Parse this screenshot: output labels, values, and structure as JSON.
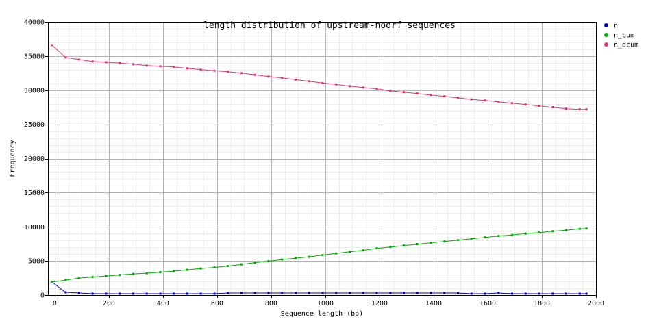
{
  "chart_data": {
    "type": "line",
    "title": "length distribution of upstream-noorf sequences",
    "xlabel": "Sequence length (bp)",
    "ylabel": "Frequency",
    "xlim": [
      -25,
      2000
    ],
    "ylim": [
      0,
      40000
    ],
    "xticks": [
      0,
      200,
      400,
      600,
      800,
      1000,
      1200,
      1400,
      1600,
      1800,
      2000
    ],
    "yticks": [
      0,
      5000,
      10000,
      15000,
      20000,
      25000,
      30000,
      35000,
      40000
    ],
    "grid": true,
    "legend": "top-right",
    "x": [
      -10,
      40,
      90,
      140,
      190,
      240,
      290,
      340,
      390,
      440,
      490,
      540,
      590,
      640,
      690,
      740,
      790,
      840,
      890,
      940,
      990,
      1040,
      1090,
      1140,
      1190,
      1240,
      1290,
      1340,
      1390,
      1440,
      1490,
      1540,
      1590,
      1640,
      1690,
      1740,
      1790,
      1840,
      1890,
      1940,
      1965
    ],
    "series": [
      {
        "name": "n",
        "color": "#0000cc",
        "values": [
          1900,
          400,
          300,
          200,
          200,
          200,
          200,
          200,
          200,
          200,
          200,
          200,
          200,
          300,
          300,
          300,
          300,
          300,
          300,
          300,
          300,
          300,
          300,
          300,
          300,
          300,
          300,
          300,
          300,
          300,
          300,
          200,
          200,
          300,
          200,
          200,
          200,
          200,
          200,
          200,
          200
        ]
      },
      {
        "name": "n_cum",
        "color": "#00aa00",
        "values": [
          1900,
          2200,
          2500,
          2650,
          2800,
          2950,
          3100,
          3200,
          3350,
          3500,
          3700,
          3900,
          4050,
          4250,
          4500,
          4750,
          4950,
          5200,
          5400,
          5600,
          5850,
          6100,
          6350,
          6550,
          6850,
          7050,
          7250,
          7450,
          7650,
          7850,
          8050,
          8250,
          8450,
          8650,
          8800,
          9000,
          9150,
          9350,
          9500,
          9700,
          9750
        ]
      },
      {
        "name": "n_dcum",
        "color": "#dd3377",
        "values": [
          36600,
          34800,
          34500,
          34200,
          34100,
          33950,
          33800,
          33600,
          33500,
          33400,
          33200,
          33000,
          32850,
          32700,
          32500,
          32250,
          32000,
          31800,
          31550,
          31300,
          31050,
          30850,
          30600,
          30400,
          30200,
          29900,
          29700,
          29500,
          29300,
          29100,
          28900,
          28650,
          28500,
          28300,
          28100,
          27900,
          27700,
          27500,
          27300,
          27200,
          27200
        ]
      }
    ]
  }
}
